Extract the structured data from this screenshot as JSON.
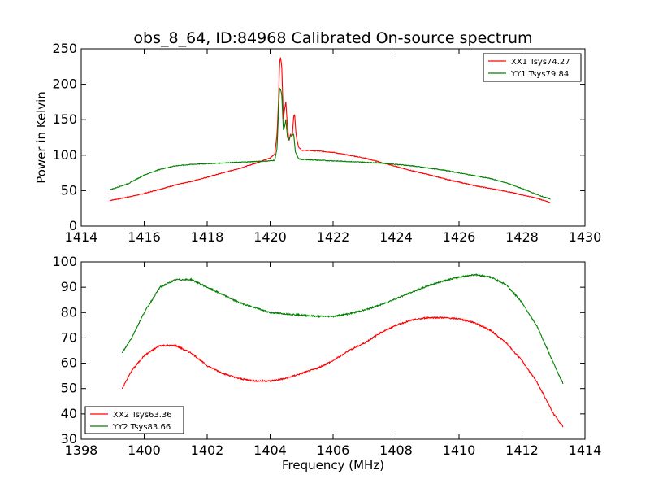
{
  "chart_data": [
    {
      "type": "line",
      "title": "obs_8_64, ID:84968 Calibrated On-source spectrum",
      "xlabel": "",
      "ylabel": "Power in Kelvin",
      "xlim": [
        1414,
        1430
      ],
      "ylim": [
        0,
        250
      ],
      "xticks": [
        1414,
        1416,
        1418,
        1420,
        1422,
        1424,
        1426,
        1428,
        1430
      ],
      "yticks": [
        0,
        50,
        100,
        150,
        200,
        250
      ],
      "grid": false,
      "legend_position": "top-right",
      "series": [
        {
          "name": "XX1 Tsys74.27",
          "color": "#ff0000",
          "points": [
            [
              1414.9,
              36
            ],
            [
              1415.5,
              41
            ],
            [
              1416,
              46
            ],
            [
              1416.5,
              52
            ],
            [
              1417,
              58
            ],
            [
              1417.5,
              63
            ],
            [
              1418,
              69
            ],
            [
              1418.5,
              75
            ],
            [
              1419,
              81
            ],
            [
              1419.5,
              88
            ],
            [
              1420,
              96
            ],
            [
              1420.15,
              102
            ],
            [
              1420.22,
              130
            ],
            [
              1420.27,
              180
            ],
            [
              1420.3,
              230
            ],
            [
              1420.33,
              238
            ],
            [
              1420.37,
              225
            ],
            [
              1420.42,
              150
            ],
            [
              1420.46,
              165
            ],
            [
              1420.5,
              175
            ],
            [
              1420.55,
              140
            ],
            [
              1420.6,
              120
            ],
            [
              1420.65,
              130
            ],
            [
              1420.7,
              125
            ],
            [
              1420.75,
              155
            ],
            [
              1420.78,
              158
            ],
            [
              1420.82,
              130
            ],
            [
              1420.9,
              112
            ],
            [
              1421,
              107
            ],
            [
              1421.5,
              106
            ],
            [
              1422,
              104
            ],
            [
              1422.5,
              100
            ],
            [
              1423,
              96
            ],
            [
              1423.5,
              90
            ],
            [
              1424,
              84
            ],
            [
              1424.5,
              78
            ],
            [
              1425,
              73
            ],
            [
              1425.5,
              67
            ],
            [
              1426,
              62
            ],
            [
              1426.5,
              57
            ],
            [
              1427,
              53
            ],
            [
              1427.5,
              49
            ],
            [
              1428,
              44
            ],
            [
              1428.5,
              39
            ],
            [
              1428.9,
              33
            ]
          ]
        },
        {
          "name": "YY1 Tsys79.84",
          "color": "#008000",
          "points": [
            [
              1414.9,
              51
            ],
            [
              1415.5,
              60
            ],
            [
              1416,
              72
            ],
            [
              1416.5,
              80
            ],
            [
              1417,
              85
            ],
            [
              1417.5,
              87
            ],
            [
              1418,
              88
            ],
            [
              1418.5,
              89
            ],
            [
              1419,
              90
            ],
            [
              1419.5,
              91
            ],
            [
              1420,
              92
            ],
            [
              1420.15,
              93
            ],
            [
              1420.22,
              110
            ],
            [
              1420.27,
              165
            ],
            [
              1420.3,
              195
            ],
            [
              1420.33,
              193
            ],
            [
              1420.37,
              185
            ],
            [
              1420.42,
              135
            ],
            [
              1420.46,
              140
            ],
            [
              1420.5,
              150
            ],
            [
              1420.55,
              125
            ],
            [
              1420.6,
              122
            ],
            [
              1420.65,
              128
            ],
            [
              1420.7,
              128
            ],
            [
              1420.75,
              130
            ],
            [
              1420.8,
              105
            ],
            [
              1420.9,
              95
            ],
            [
              1421,
              94
            ],
            [
              1421.5,
              93
            ],
            [
              1422,
              92
            ],
            [
              1422.5,
              91
            ],
            [
              1423,
              90
            ],
            [
              1423.5,
              89
            ],
            [
              1424,
              87
            ],
            [
              1424.5,
              85
            ],
            [
              1425,
              82
            ],
            [
              1425.5,
              79
            ],
            [
              1426,
              75
            ],
            [
              1426.5,
              71
            ],
            [
              1427,
              67
            ],
            [
              1427.5,
              61
            ],
            [
              1428,
              53
            ],
            [
              1428.5,
              44
            ],
            [
              1428.9,
              38
            ]
          ]
        }
      ]
    },
    {
      "type": "line",
      "title": "",
      "xlabel": "Frequency (MHz)",
      "ylabel": "",
      "xlim": [
        1398,
        1414
      ],
      "ylim": [
        30,
        100
      ],
      "xticks": [
        1398,
        1400,
        1402,
        1404,
        1406,
        1408,
        1410,
        1412,
        1414
      ],
      "yticks": [
        30,
        40,
        50,
        60,
        70,
        80,
        90,
        100
      ],
      "grid": false,
      "legend_position": "bottom-left",
      "series": [
        {
          "name": "XX2 Tsys63.36",
          "color": "#ff0000",
          "points": [
            [
              1399.3,
              50
            ],
            [
              1399.6,
              57
            ],
            [
              1400,
              63
            ],
            [
              1400.5,
              67
            ],
            [
              1401,
              67
            ],
            [
              1401.5,
              64
            ],
            [
              1402,
              59
            ],
            [
              1402.5,
              56
            ],
            [
              1403,
              54
            ],
            [
              1403.5,
              53
            ],
            [
              1404,
              53
            ],
            [
              1404.5,
              54
            ],
            [
              1405,
              56
            ],
            [
              1405.5,
              58
            ],
            [
              1406,
              61
            ],
            [
              1406.5,
              65
            ],
            [
              1407,
              68
            ],
            [
              1407.5,
              72
            ],
            [
              1408,
              75
            ],
            [
              1408.5,
              77
            ],
            [
              1409,
              78
            ],
            [
              1409.5,
              78
            ],
            [
              1410,
              77.5
            ],
            [
              1410.5,
              76
            ],
            [
              1411,
              73
            ],
            [
              1411.5,
              68
            ],
            [
              1412,
              61
            ],
            [
              1412.5,
              52
            ],
            [
              1413,
              40
            ],
            [
              1413.3,
              35
            ]
          ]
        },
        {
          "name": "YY2 Tsys83.66",
          "color": "#008000",
          "points": [
            [
              1399.3,
              64
            ],
            [
              1399.6,
              70
            ],
            [
              1400,
              80
            ],
            [
              1400.5,
              90
            ],
            [
              1401,
              93
            ],
            [
              1401.5,
              93
            ],
            [
              1402,
              90
            ],
            [
              1402.5,
              87
            ],
            [
              1403,
              84
            ],
            [
              1403.5,
              82
            ],
            [
              1404,
              80
            ],
            [
              1404.5,
              79.5
            ],
            [
              1405,
              79
            ],
            [
              1405.5,
              78.5
            ],
            [
              1406,
              78.5
            ],
            [
              1406.5,
              79.5
            ],
            [
              1407,
              81
            ],
            [
              1407.5,
              83
            ],
            [
              1408,
              85.5
            ],
            [
              1408.5,
              88
            ],
            [
              1409,
              90.5
            ],
            [
              1409.5,
              92.5
            ],
            [
              1410,
              94
            ],
            [
              1410.5,
              95
            ],
            [
              1411,
              94
            ],
            [
              1411.5,
              91
            ],
            [
              1412,
              84
            ],
            [
              1412.5,
              74
            ],
            [
              1413,
              60
            ],
            [
              1413.3,
              52
            ]
          ]
        }
      ]
    }
  ]
}
